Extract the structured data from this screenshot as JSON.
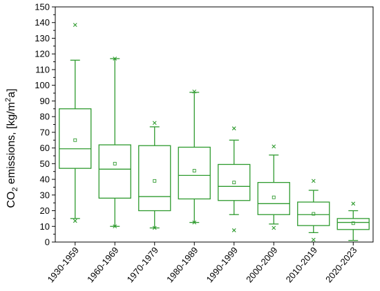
{
  "chart_data": {
    "type": "box",
    "ylabel": "CO₂ emissions, [kg/m²a]",
    "ylabel_parts": {
      "pre": "CO",
      "sub": "2",
      "mid": " emissions, [kg/m",
      "sup": "2",
      "post": "a]"
    },
    "xlabel": "",
    "ylim": [
      0,
      150
    ],
    "yticks": [
      0,
      10,
      20,
      30,
      40,
      50,
      60,
      70,
      80,
      90,
      100,
      110,
      120,
      130,
      140,
      150
    ],
    "color": "#2e9a2e",
    "grid": false,
    "categories": [
      "1930-1959",
      "1960-1969",
      "1970-1979",
      "1980-1989",
      "1990-1999",
      "2000-2009",
      "2010-2019",
      "2020-2023"
    ],
    "boxes": [
      {
        "category": "1930-1959",
        "whisker_low": 15,
        "q1": 47,
        "median": 59.5,
        "q3": 85,
        "whisker_high": 116,
        "mean": 65,
        "outliers": [
          138.5,
          13.5
        ]
      },
      {
        "category": "1960-1969",
        "whisker_low": 10,
        "q1": 28,
        "median": 46.5,
        "q3": 62,
        "whisker_high": 117,
        "mean": 50,
        "outliers": [
          117,
          10
        ]
      },
      {
        "category": "1970-1979",
        "whisker_low": 9,
        "q1": 20,
        "median": 29,
        "q3": 61.5,
        "whisker_high": 73.5,
        "mean": 39,
        "outliers": [
          76,
          9
        ]
      },
      {
        "category": "1980-1989",
        "whisker_low": 12.5,
        "q1": 27.5,
        "median": 42.5,
        "q3": 60.5,
        "whisker_high": 95.5,
        "mean": 45.5,
        "outliers": [
          96,
          12.5
        ]
      },
      {
        "category": "1990-1999",
        "whisker_low": 17.5,
        "q1": 26.5,
        "median": 35.5,
        "q3": 49.5,
        "whisker_high": 65,
        "mean": 38,
        "outliers": [
          72.5,
          7.5
        ]
      },
      {
        "category": "2000-2009",
        "whisker_low": 11.5,
        "q1": 17.5,
        "median": 24.5,
        "q3": 38,
        "whisker_high": 55.5,
        "mean": 28.5,
        "outliers": [
          61,
          9
        ]
      },
      {
        "category": "2010-2019",
        "whisker_low": 6,
        "q1": 10.5,
        "median": 17.5,
        "q3": 25.5,
        "whisker_high": 33,
        "mean": 18,
        "outliers": [
          39,
          1.5
        ]
      },
      {
        "category": "2020-2023",
        "whisker_low": 1,
        "q1": 8,
        "median": 12.5,
        "q3": 15,
        "whisker_high": 20,
        "mean": 12,
        "outliers": [
          24.5
        ]
      }
    ]
  }
}
